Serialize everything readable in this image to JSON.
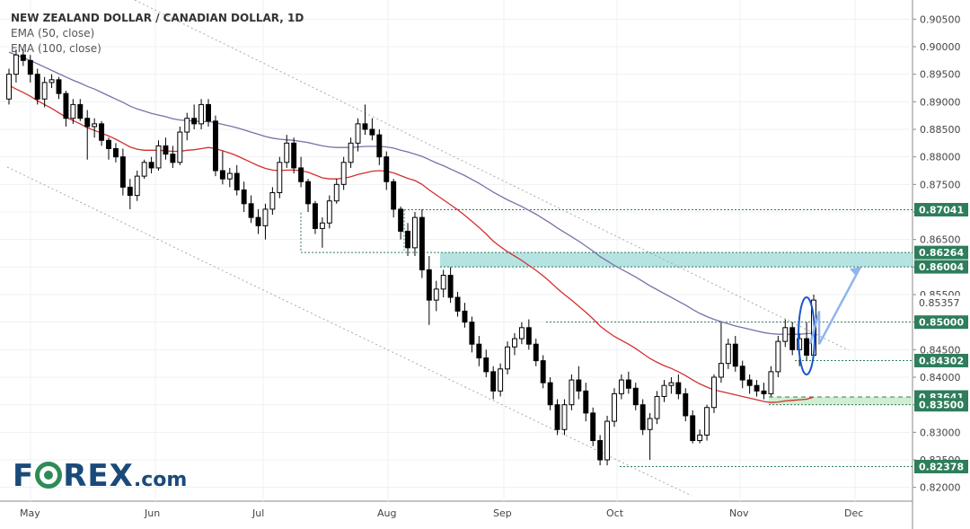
{
  "chart_data": {
    "type": "candlestick",
    "title": "NEW ZEALAND DOLLAR / CANADIAN DOLLAR, 1D",
    "indicators": [
      {
        "name": "EMA (50, close)",
        "color": "#d32f2f"
      },
      {
        "name": "EMA (100, close)",
        "color": "#7b6fa8"
      }
    ],
    "x_ticks": [
      "May",
      "Jun",
      "Jul",
      "Aug",
      "Sep",
      "Oct",
      "Nov",
      "Dec"
    ],
    "ylim": [
      0.8175,
      0.9075
    ],
    "y_ticks": [
      "0.90500",
      "0.90000",
      "0.89500",
      "0.89000",
      "0.88500",
      "0.88000",
      "0.87500",
      "0.87000",
      "0.86500",
      "0.86000",
      "0.85500",
      "0.85000",
      "0.84500",
      "0.84000",
      "0.83500",
      "0.83000",
      "0.82500",
      "0.82000"
    ],
    "y_tick_values": [
      0.905,
      0.9,
      0.895,
      0.89,
      0.885,
      0.88,
      0.875,
      0.87,
      0.865,
      0.86,
      0.855,
      0.85,
      0.845,
      0.84,
      0.835,
      0.83,
      0.825,
      0.82
    ],
    "levels": [
      {
        "label": "0.87041",
        "value": 0.87041
      },
      {
        "label": "0.86264",
        "value": 0.86264
      },
      {
        "label": "0.86004",
        "value": 0.86004
      },
      {
        "label": "0.85000",
        "value": 0.85
      },
      {
        "label": "0.84302",
        "value": 0.84302
      },
      {
        "label": "0.83641",
        "value": 0.83641
      },
      {
        "label": "0.83500",
        "value": 0.835
      },
      {
        "label": "0.82378",
        "value": 0.82378
      }
    ],
    "current_price_label": "0.85357",
    "current_price": 0.85357,
    "zones": [
      {
        "from": 0.86004,
        "to": 0.86264,
        "color": "#a8dedd"
      },
      {
        "from": 0.835,
        "to": 0.83641,
        "color": "#c8ecc8"
      }
    ],
    "ohlc": [
      [
        0.8905,
        0.896,
        0.8895,
        0.895
      ],
      [
        0.895,
        0.8995,
        0.8935,
        0.8985
      ],
      [
        0.8985,
        0.8995,
        0.8965,
        0.8975
      ],
      [
        0.8975,
        0.8985,
        0.8935,
        0.895
      ],
      [
        0.895,
        0.896,
        0.8895,
        0.8905
      ],
      [
        0.8905,
        0.8945,
        0.889,
        0.8935
      ],
      [
        0.8935,
        0.895,
        0.8925,
        0.894
      ],
      [
        0.894,
        0.8945,
        0.8905,
        0.8915
      ],
      [
        0.8915,
        0.892,
        0.8855,
        0.887
      ],
      [
        0.887,
        0.8905,
        0.886,
        0.8895
      ],
      [
        0.8895,
        0.8905,
        0.8865,
        0.887
      ],
      [
        0.887,
        0.8885,
        0.8795,
        0.8855
      ],
      [
        0.8855,
        0.887,
        0.8835,
        0.886
      ],
      [
        0.886,
        0.8865,
        0.882,
        0.883
      ],
      [
        0.883,
        0.8835,
        0.8795,
        0.8815
      ],
      [
        0.8815,
        0.8825,
        0.879,
        0.88
      ],
      [
        0.88,
        0.8815,
        0.873,
        0.8745
      ],
      [
        0.8745,
        0.876,
        0.8705,
        0.873
      ],
      [
        0.873,
        0.8775,
        0.872,
        0.8765
      ],
      [
        0.8765,
        0.8795,
        0.876,
        0.879
      ],
      [
        0.879,
        0.88,
        0.877,
        0.878
      ],
      [
        0.878,
        0.883,
        0.8775,
        0.882
      ],
      [
        0.882,
        0.8835,
        0.8795,
        0.8805
      ],
      [
        0.8805,
        0.882,
        0.878,
        0.879
      ],
      [
        0.879,
        0.8855,
        0.8785,
        0.8845
      ],
      [
        0.8845,
        0.888,
        0.883,
        0.887
      ],
      [
        0.887,
        0.8895,
        0.885,
        0.886
      ],
      [
        0.886,
        0.8905,
        0.885,
        0.8895
      ],
      [
        0.8895,
        0.8905,
        0.8855,
        0.8865
      ],
      [
        0.8865,
        0.8875,
        0.8765,
        0.8775
      ],
      [
        0.8775,
        0.881,
        0.875,
        0.876
      ],
      [
        0.876,
        0.878,
        0.8745,
        0.877
      ],
      [
        0.877,
        0.8785,
        0.873,
        0.874
      ],
      [
        0.874,
        0.8755,
        0.87,
        0.8715
      ],
      [
        0.8715,
        0.873,
        0.868,
        0.869
      ],
      [
        0.869,
        0.8705,
        0.866,
        0.8675
      ],
      [
        0.8675,
        0.8715,
        0.865,
        0.8705
      ],
      [
        0.8705,
        0.8745,
        0.8695,
        0.8735
      ],
      [
        0.8735,
        0.88,
        0.8725,
        0.879
      ],
      [
        0.879,
        0.884,
        0.878,
        0.8825
      ],
      [
        0.8825,
        0.8835,
        0.877,
        0.878
      ],
      [
        0.878,
        0.88,
        0.8745,
        0.8755
      ],
      [
        0.8755,
        0.876,
        0.87,
        0.8715
      ],
      [
        0.8715,
        0.872,
        0.866,
        0.867
      ],
      [
        0.867,
        0.869,
        0.8635,
        0.868
      ],
      [
        0.868,
        0.873,
        0.867,
        0.872
      ],
      [
        0.872,
        0.876,
        0.8715,
        0.875
      ],
      [
        0.875,
        0.88,
        0.874,
        0.879
      ],
      [
        0.879,
        0.8835,
        0.878,
        0.8825
      ],
      [
        0.8825,
        0.887,
        0.881,
        0.886
      ],
      [
        0.886,
        0.8895,
        0.884,
        0.885
      ],
      [
        0.885,
        0.887,
        0.883,
        0.884
      ],
      [
        0.884,
        0.885,
        0.8785,
        0.88
      ],
      [
        0.88,
        0.881,
        0.874,
        0.8755
      ],
      [
        0.8755,
        0.876,
        0.869,
        0.8705
      ],
      [
        0.8705,
        0.871,
        0.865,
        0.8665
      ],
      [
        0.8665,
        0.868,
        0.862,
        0.8635
      ],
      [
        0.8635,
        0.87,
        0.862,
        0.869
      ],
      [
        0.869,
        0.8705,
        0.858,
        0.8595
      ],
      [
        0.8595,
        0.862,
        0.8495,
        0.854
      ],
      [
        0.854,
        0.8575,
        0.852,
        0.856
      ],
      [
        0.856,
        0.8595,
        0.8545,
        0.8585
      ],
      [
        0.8585,
        0.86,
        0.8535,
        0.8545
      ],
      [
        0.8545,
        0.8555,
        0.851,
        0.852
      ],
      [
        0.852,
        0.8535,
        0.849,
        0.85
      ],
      [
        0.85,
        0.851,
        0.8445,
        0.846
      ],
      [
        0.846,
        0.8475,
        0.842,
        0.8435
      ],
      [
        0.8435,
        0.845,
        0.84,
        0.841
      ],
      [
        0.841,
        0.842,
        0.836,
        0.8375
      ],
      [
        0.8375,
        0.8425,
        0.8365,
        0.8415
      ],
      [
        0.8415,
        0.8465,
        0.8405,
        0.8455
      ],
      [
        0.8455,
        0.848,
        0.844,
        0.847
      ],
      [
        0.847,
        0.85,
        0.846,
        0.849
      ],
      [
        0.849,
        0.8505,
        0.845,
        0.846
      ],
      [
        0.846,
        0.847,
        0.842,
        0.843
      ],
      [
        0.843,
        0.844,
        0.838,
        0.839
      ],
      [
        0.839,
        0.84,
        0.834,
        0.835
      ],
      [
        0.835,
        0.836,
        0.8295,
        0.8305
      ],
      [
        0.8305,
        0.836,
        0.8295,
        0.835
      ],
      [
        0.835,
        0.8405,
        0.834,
        0.8395
      ],
      [
        0.8395,
        0.842,
        0.836,
        0.8375
      ],
      [
        0.8375,
        0.839,
        0.832,
        0.8335
      ],
      [
        0.8335,
        0.8345,
        0.8275,
        0.8285
      ],
      [
        0.8285,
        0.8295,
        0.824,
        0.825
      ],
      [
        0.825,
        0.833,
        0.824,
        0.832
      ],
      [
        0.832,
        0.838,
        0.831,
        0.837
      ],
      [
        0.837,
        0.8405,
        0.836,
        0.8395
      ],
      [
        0.8395,
        0.841,
        0.837,
        0.838
      ],
      [
        0.838,
        0.839,
        0.834,
        0.835
      ],
      [
        0.835,
        0.836,
        0.8295,
        0.8305
      ],
      [
        0.8305,
        0.8335,
        0.825,
        0.8325
      ],
      [
        0.8325,
        0.8375,
        0.8315,
        0.8365
      ],
      [
        0.8365,
        0.8395,
        0.8355,
        0.8385
      ],
      [
        0.8385,
        0.84,
        0.837,
        0.839
      ],
      [
        0.839,
        0.8405,
        0.836,
        0.837
      ],
      [
        0.837,
        0.838,
        0.832,
        0.833
      ],
      [
        0.833,
        0.834,
        0.828,
        0.8285
      ],
      [
        0.8285,
        0.8305,
        0.828,
        0.8295
      ],
      [
        0.8295,
        0.835,
        0.8285,
        0.8345
      ],
      [
        0.8345,
        0.8405,
        0.8335,
        0.84
      ],
      [
        0.84,
        0.85,
        0.839,
        0.8425
      ],
      [
        0.8425,
        0.847,
        0.8415,
        0.846
      ],
      [
        0.846,
        0.8475,
        0.841,
        0.842
      ],
      [
        0.842,
        0.843,
        0.838,
        0.8395
      ],
      [
        0.8395,
        0.8405,
        0.837,
        0.8385
      ],
      [
        0.8385,
        0.8395,
        0.8365,
        0.8375
      ],
      [
        0.8375,
        0.839,
        0.836,
        0.837
      ],
      [
        0.837,
        0.842,
        0.8365,
        0.841
      ],
      [
        0.841,
        0.8475,
        0.84,
        0.8465
      ],
      [
        0.8465,
        0.8505,
        0.8455,
        0.849
      ],
      [
        0.849,
        0.85,
        0.844,
        0.845
      ],
      [
        0.845,
        0.848,
        0.842,
        0.847
      ],
      [
        0.847,
        0.85,
        0.843,
        0.844
      ],
      [
        0.844,
        0.855,
        0.8435,
        0.854
      ]
    ],
    "ema50": [
      0.893,
      0.8923,
      0.8917,
      0.891,
      0.8902,
      0.8895,
      0.8888,
      0.888,
      0.8872,
      0.8866,
      0.886,
      0.8853,
      0.8848,
      0.8843,
      0.8838,
      0.8832,
      0.8825,
      0.8818,
      0.8814,
      0.8812,
      0.8812,
      0.8812,
      0.8811,
      0.881,
      0.881,
      0.8812,
      0.8813,
      0.8815,
      0.8817,
      0.8815,
      0.8811,
      0.8807,
      0.8802,
      0.8796,
      0.879,
      0.8784,
      0.8779,
      0.8776,
      0.8775,
      0.8776,
      0.8776,
      0.8775,
      0.8772,
      0.8767,
      0.8762,
      0.876,
      0.876,
      0.8761,
      0.8764,
      0.8768,
      0.8771,
      0.8774,
      0.8775,
      0.8774,
      0.8771,
      0.8766,
      0.8761,
      0.8757,
      0.875,
      0.874,
      0.8731,
      0.8722,
      0.8713,
      0.8704,
      0.8694,
      0.8683,
      0.8672,
      0.866,
      0.8647,
      0.8637,
      0.8628,
      0.862,
      0.8612,
      0.8603,
      0.8594,
      0.8584,
      0.8573,
      0.8561,
      0.855,
      0.854,
      0.8529,
      0.8518,
      0.8506,
      0.8493,
      0.8483,
      0.8474,
      0.8467,
      0.846,
      0.8452,
      0.8443,
      0.8434,
      0.8427,
      0.8421,
      0.8416,
      0.841,
      0.8403,
      0.8395,
      0.8388,
      0.8382,
      0.8377,
      0.8374,
      0.8371,
      0.8368,
      0.8365,
      0.8362,
      0.8359,
      0.8356,
      0.8354,
      0.8355,
      0.8357,
      0.8358,
      0.8359,
      0.836,
      0.8364
    ],
    "ema100": [
      0.899,
      0.8985,
      0.898,
      0.8975,
      0.8969,
      0.8963,
      0.8957,
      0.8951,
      0.8945,
      0.8939,
      0.8934,
      0.8928,
      0.8923,
      0.8917,
      0.8911,
      0.8905,
      0.8899,
      0.8892,
      0.8887,
      0.8883,
      0.8879,
      0.8876,
      0.8873,
      0.8869,
      0.8867,
      0.8866,
      0.8865,
      0.8864,
      0.8864,
      0.8862,
      0.8859,
      0.8856,
      0.8853,
      0.8849,
      0.8845,
      0.8841,
      0.8837,
      0.8834,
      0.8832,
      0.8831,
      0.883,
      0.8828,
      0.8826,
      0.8823,
      0.882,
      0.8818,
      0.8817,
      0.8817,
      0.8817,
      0.8818,
      0.8819,
      0.8819,
      0.8819,
      0.8818,
      0.8816,
      0.8812,
      0.8809,
      0.8805,
      0.8801,
      0.8795,
      0.8789,
      0.8784,
      0.8778,
      0.8772,
      0.8766,
      0.8759,
      0.8752,
      0.8744,
      0.8736,
      0.8729,
      0.8722,
      0.8716,
      0.871,
      0.8703,
      0.8696,
      0.8688,
      0.868,
      0.8671,
      0.8663,
      0.8655,
      0.8647,
      0.8638,
      0.8629,
      0.8619,
      0.8611,
      0.8603,
      0.8596,
      0.8589,
      0.8582,
      0.8574,
      0.8566,
      0.8559,
      0.8552,
      0.8545,
      0.8538,
      0.8531,
      0.8523,
      0.8516,
      0.851,
      0.8505,
      0.8501,
      0.8497,
      0.8493,
      0.849,
      0.8487,
      0.8484,
      0.8481,
      0.8479,
      0.8478,
      0.8478,
      0.8478,
      0.8478,
      0.8479,
      0.848
    ]
  },
  "logo": {
    "text_a": "F",
    "text_b": "REX",
    "text_c": ".com"
  }
}
